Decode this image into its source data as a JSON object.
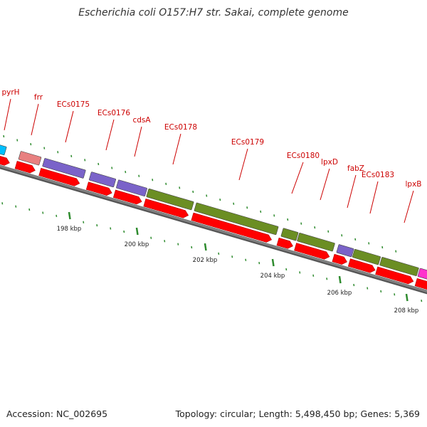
{
  "title": "Escherichia coli O157:H7 str. Sakai, complete genome",
  "footer": {
    "accession": "Accession: NC_002695",
    "stats": "Topology: circular; Length: 5,498,450 bp; Genes: 5,369"
  },
  "colors": {
    "cyan": "#00bfff",
    "salmon": "#e88080",
    "purple": "#7a63c9",
    "olive": "#6b8e23",
    "magenta": "#ff33cc",
    "cds": "#ff0000",
    "backbone": "#808080",
    "tick": "#2e8b2e",
    "label": "#cc0000"
  },
  "gene_labels": [
    "pyrH",
    "frr",
    "ECs0175",
    "ECs0176",
    "cdsA",
    "ECs0178",
    "ECs0179",
    "ECs0180",
    "lpxD",
    "fabZ",
    "ECs0183",
    "lpxB"
  ],
  "ticks": [
    "198 kbp",
    "200 kbp",
    "202 kbp",
    "204 kbp",
    "206 kbp",
    "208 kbp"
  ]
}
